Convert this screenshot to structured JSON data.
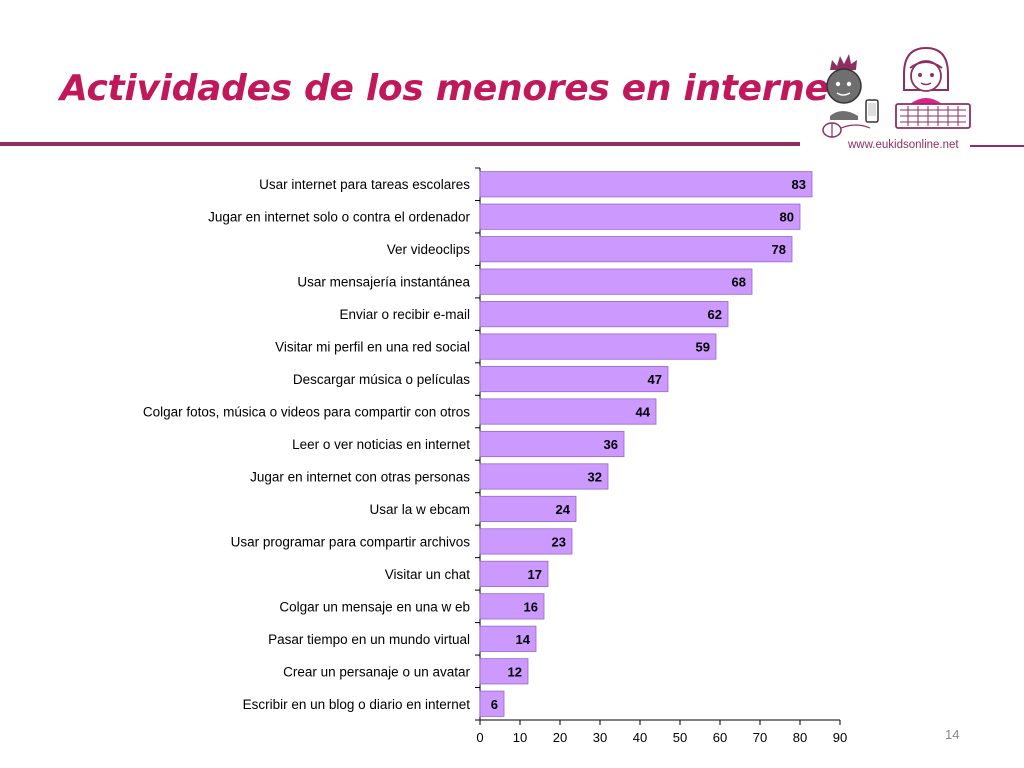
{
  "slide": {
    "title": "Actividades de los menores en internet",
    "website": "www.eukidsonline.net",
    "page_number": "14"
  },
  "logo": {
    "icon": "eu-kids-online-children-logo"
  },
  "colors": {
    "title": "#c0185a",
    "accent": "#8e2f63",
    "bar_fill": "#cc99ff",
    "bar_stroke": "#9966cc"
  },
  "chart_data": {
    "type": "bar",
    "orientation": "horizontal",
    "categories": [
      "Usar internet para tareas escolares",
      "Jugar en internet solo o contra el ordenador",
      "Ver videoclips",
      "Usar mensajería instantánea",
      "Enviar o recibir e-mail",
      "Visitar mi perfil en una red social",
      "Descargar música o películas",
      "Colgar fotos, música o videos para compartir con otros",
      "Leer o ver noticias en internet",
      "Jugar en internet con otras personas",
      "Usar la w ebcam",
      "Usar programar para compartir archivos",
      "Visitar un chat",
      "Colgar un mensaje en una w eb",
      "Pasar tiempo en un mundo virtual",
      "Crear un persanaje o un avatar",
      "Escribir en un blog o diario en internet"
    ],
    "values": [
      83,
      80,
      78,
      68,
      62,
      59,
      47,
      44,
      36,
      32,
      24,
      23,
      17,
      16,
      14,
      12,
      6
    ],
    "xlim": [
      0,
      90
    ],
    "xticks": [
      0,
      10,
      20,
      30,
      40,
      50,
      60,
      70,
      80,
      90
    ],
    "data_labels": true,
    "grid": false,
    "legend": "none"
  }
}
